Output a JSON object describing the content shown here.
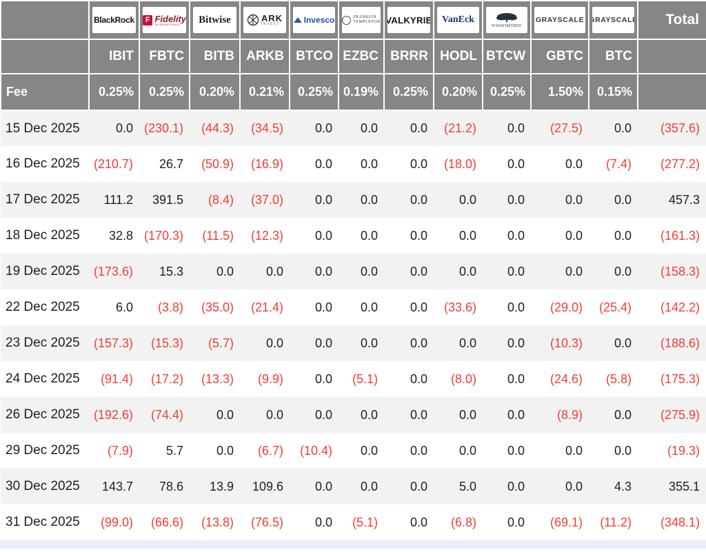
{
  "colors": {
    "header_bg": "#868686",
    "negative_red": "#f23d33",
    "row_alternate": "#f2f2f2",
    "bottom_strip": "#e9edf5"
  },
  "logos": {
    "blackrock": "BlackRock",
    "fidelity_f": "F",
    "fidelity": "Fidelity",
    "fidelity_sub": "INTERNATIONAL",
    "bitwise": "Bitwise",
    "ark": "ARK",
    "ark_sub": "INVEST",
    "invesco": "Invesco",
    "franklin_line1": "FRANKLIN",
    "franklin_line2": "TEMPLETON",
    "valkyrie": "VALKYRIE",
    "vaneck": "VanEck",
    "wisdomtree": "WISDOMTREE",
    "grayscale_gbtc": "GRAYSCALE",
    "grayscale_btc": "GRAYSCALE"
  },
  "table": {
    "fee_label": "Fee",
    "total_label": "Total",
    "providers": [
      {
        "name": "BlackRock",
        "ticker": "IBIT",
        "fee": "0.25%"
      },
      {
        "name": "Fidelity International",
        "ticker": "FBTC",
        "fee": "0.25%"
      },
      {
        "name": "Bitwise",
        "ticker": "BITB",
        "fee": "0.20%"
      },
      {
        "name": "ARK Invest",
        "ticker": "ARKB",
        "fee": "0.21%"
      },
      {
        "name": "Invesco",
        "ticker": "BTCO",
        "fee": "0.25%"
      },
      {
        "name": "Franklin Templeton",
        "ticker": "EZBC",
        "fee": "0.19%"
      },
      {
        "name": "Valkyrie",
        "ticker": "BRRR",
        "fee": "0.25%"
      },
      {
        "name": "VanEck",
        "ticker": "HODL",
        "fee": "0.20%"
      },
      {
        "name": "WisdomTree",
        "ticker": "BTCW",
        "fee": "0.25%"
      },
      {
        "name": "Grayscale",
        "ticker": "GBTC",
        "fee": "1.50%"
      },
      {
        "name": "Grayscale",
        "ticker": "BTC",
        "fee": "0.15%"
      }
    ],
    "rows": [
      {
        "date": "15 Dec 2025",
        "values": [
          "0.0",
          "(230.1)",
          "(44.3)",
          "(34.5)",
          "0.0",
          "0.0",
          "0.0",
          "(21.2)",
          "0.0",
          "(27.5)",
          "0.0"
        ],
        "total": "(357.6)"
      },
      {
        "date": "16 Dec 2025",
        "values": [
          "(210.7)",
          "26.7",
          "(50.9)",
          "(16.9)",
          "0.0",
          "0.0",
          "0.0",
          "(18.0)",
          "0.0",
          "0.0",
          "(7.4)"
        ],
        "total": "(277.2)"
      },
      {
        "date": "17 Dec 2025",
        "values": [
          "111.2",
          "391.5",
          "(8.4)",
          "(37.0)",
          "0.0",
          "0.0",
          "0.0",
          "0.0",
          "0.0",
          "0.0",
          "0.0"
        ],
        "total": "457.3"
      },
      {
        "date": "18 Dec 2025",
        "values": [
          "32.8",
          "(170.3)",
          "(11.5)",
          "(12.3)",
          "0.0",
          "0.0",
          "0.0",
          "0.0",
          "0.0",
          "0.0",
          "0.0"
        ],
        "total": "(161.3)"
      },
      {
        "date": "19 Dec 2025",
        "values": [
          "(173.6)",
          "15.3",
          "0.0",
          "0.0",
          "0.0",
          "0.0",
          "0.0",
          "0.0",
          "0.0",
          "0.0",
          "0.0"
        ],
        "total": "(158.3)"
      },
      {
        "date": "22 Dec 2025",
        "values": [
          "6.0",
          "(3.8)",
          "(35.0)",
          "(21.4)",
          "0.0",
          "0.0",
          "0.0",
          "(33.6)",
          "0.0",
          "(29.0)",
          "(25.4)"
        ],
        "total": "(142.2)"
      },
      {
        "date": "23 Dec 2025",
        "values": [
          "(157.3)",
          "(15.3)",
          "(5.7)",
          "0.0",
          "0.0",
          "0.0",
          "0.0",
          "0.0",
          "0.0",
          "(10.3)",
          "0.0"
        ],
        "total": "(188.6)"
      },
      {
        "date": "24 Dec 2025",
        "values": [
          "(91.4)",
          "(17.2)",
          "(13.3)",
          "(9.9)",
          "0.0",
          "(5.1)",
          "0.0",
          "(8.0)",
          "0.0",
          "(24.6)",
          "(5.8)"
        ],
        "total": "(175.3)"
      },
      {
        "date": "26 Dec 2025",
        "values": [
          "(192.6)",
          "(74.4)",
          "0.0",
          "0.0",
          "0.0",
          "0.0",
          "0.0",
          "0.0",
          "0.0",
          "(8.9)",
          "0.0"
        ],
        "total": "(275.9)"
      },
      {
        "date": "29 Dec 2025",
        "values": [
          "(7.9)",
          "5.7",
          "0.0",
          "(6.7)",
          "(10.4)",
          "0.0",
          "0.0",
          "0.0",
          "0.0",
          "0.0",
          "0.0"
        ],
        "total": "(19.3)"
      },
      {
        "date": "30 Dec 2025",
        "values": [
          "143.7",
          "78.6",
          "13.9",
          "109.6",
          "0.0",
          "0.0",
          "0.0",
          "5.0",
          "0.0",
          "0.0",
          "4.3"
        ],
        "total": "355.1"
      },
      {
        "date": "31 Dec 2025",
        "values": [
          "(99.0)",
          "(66.6)",
          "(13.8)",
          "(76.5)",
          "0.0",
          "(5.1)",
          "0.0",
          "(6.8)",
          "0.0",
          "(69.1)",
          "(11.2)"
        ],
        "total": "(348.1)"
      }
    ]
  }
}
